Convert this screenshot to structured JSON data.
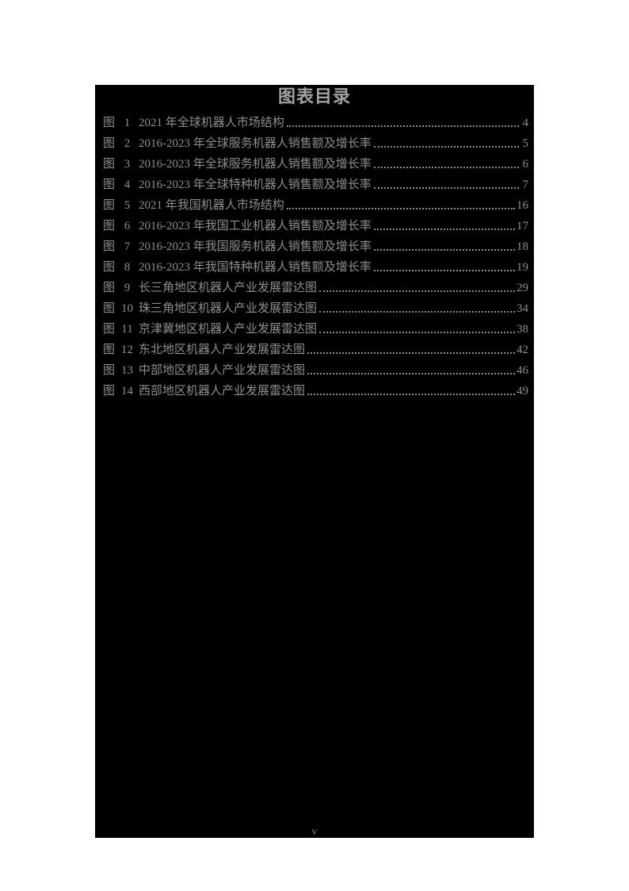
{
  "toc": {
    "title": "图表目录",
    "folio": "v",
    "entries": [
      {
        "label": "图",
        "num": "1",
        "title": "2021 年全球机器人市场结构",
        "page": "4"
      },
      {
        "label": "图",
        "num": "2",
        "title": "2016-2023 年全球服务机器人销售额及增长率",
        "page": "5"
      },
      {
        "label": "图",
        "num": "3",
        "title": "2016-2023 年全球服务机器人销售额及增长率",
        "page": "6"
      },
      {
        "label": "图",
        "num": "4",
        "title": "2016-2023 年全球特种机器人销售额及增长率",
        "page": "7"
      },
      {
        "label": "图",
        "num": "5",
        "title": "2021 年我国机器人市场结构",
        "page": "16"
      },
      {
        "label": "图",
        "num": "6",
        "title": "2016-2023 年我国工业机器人销售额及增长率",
        "page": "17"
      },
      {
        "label": "图",
        "num": "7",
        "title": "2016-2023 年我国服务机器人销售额及增长率",
        "page": "18"
      },
      {
        "label": "图",
        "num": "8",
        "title": "2016-2023 年我国特种机器人销售额及增长率",
        "page": "19"
      },
      {
        "label": "图",
        "num": "9",
        "title": "长三角地区机器人产业发展雷达图",
        "page": "29"
      },
      {
        "label": "图",
        "num": "10",
        "title": "珠三角地区机器人产业发展雷达图",
        "page": "34"
      },
      {
        "label": "图",
        "num": "11",
        "title": "京津冀地区机器人产业发展雷达图",
        "page": "38"
      },
      {
        "label": "图",
        "num": "12",
        "title": "东北地区机器人产业发展雷达图",
        "page": "42"
      },
      {
        "label": "图",
        "num": "13",
        "title": "中部地区机器人产业发展雷达图",
        "page": "46"
      },
      {
        "label": "图",
        "num": "14",
        "title": "西部地区机器人产业发展雷达图",
        "page": "49"
      }
    ],
    "colors": {
      "page_bg": "#ffffff",
      "panel_bg": "#000000",
      "entry_text": "#8d8d8d",
      "title_text": "#a2a2a2",
      "folio_text": "#777777"
    }
  }
}
